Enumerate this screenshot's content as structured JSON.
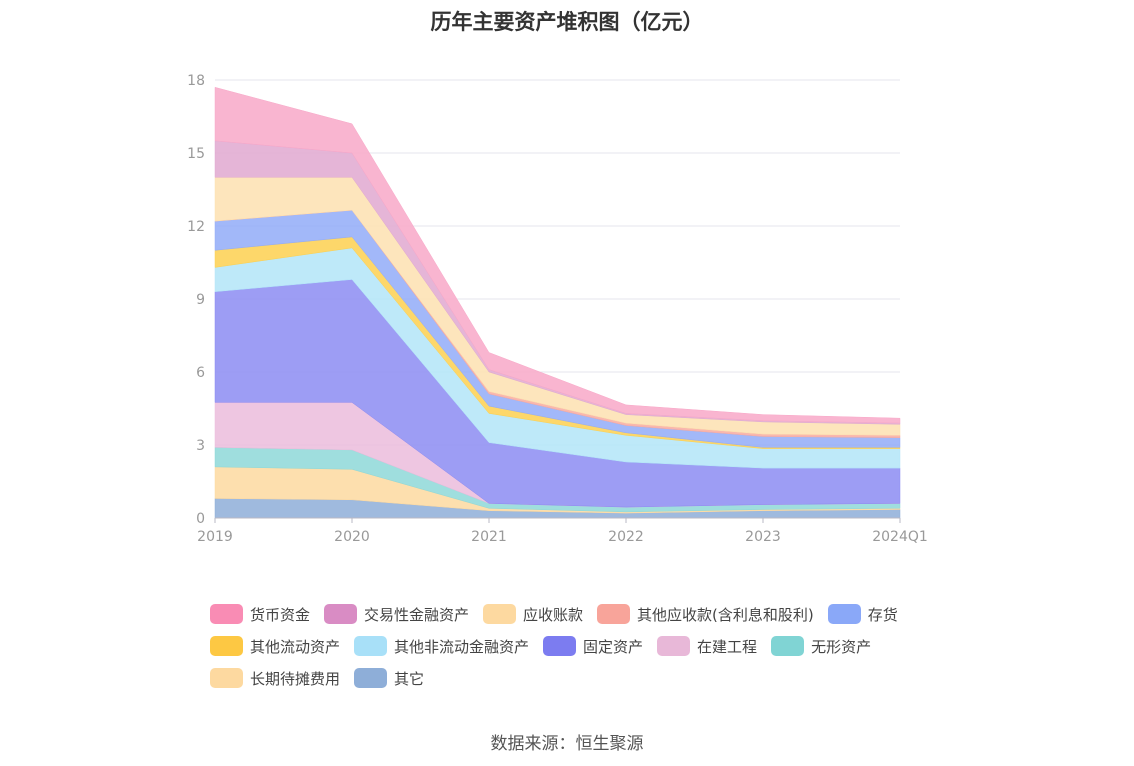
{
  "title": "历年主要资产堆积图（亿元）",
  "source": "数据来源：恒生聚源",
  "chart_data": {
    "type": "area",
    "stacked": true,
    "title": "历年主要资产堆积图（亿元）",
    "categories": [
      "2019",
      "2020",
      "2021",
      "2022",
      "2023",
      "2024Q1"
    ],
    "ylim": [
      0,
      18
    ],
    "yticks": [
      0,
      3,
      6,
      9,
      12,
      15,
      18
    ],
    "grid": true,
    "legend_position": "bottom",
    "series": [
      {
        "name": "其它",
        "color": "#8eaed8",
        "values": [
          0.8,
          0.75,
          0.3,
          0.2,
          0.3,
          0.35
        ]
      },
      {
        "name": "长期待摊费用",
        "color": "#fdd9a0",
        "values": [
          1.3,
          1.25,
          0.1,
          0.05,
          0.05,
          0.05
        ]
      },
      {
        "name": "无形资产",
        "color": "#8ed8d8",
        "values": [
          0.8,
          0.8,
          0.2,
          0.2,
          0.2,
          0.2
        ]
      },
      {
        "name": "在建工程",
        "color": "#ebbcdc",
        "values": [
          1.85,
          1.95,
          0.0,
          0.0,
          0.0,
          0.0
        ]
      },
      {
        "name": "固定资产",
        "color": "#8c8cf2",
        "values": [
          4.55,
          5.05,
          2.5,
          1.85,
          1.5,
          1.45
        ]
      },
      {
        "name": "其他非流动金融资产",
        "color": "#b3e5f8",
        "values": [
          1.0,
          1.3,
          1.2,
          1.1,
          0.8,
          0.8
        ]
      },
      {
        "name": "其他流动资产",
        "color": "#fdd050",
        "values": [
          0.7,
          0.45,
          0.3,
          0.1,
          0.05,
          0.05
        ]
      },
      {
        "name": "存货",
        "color": "#92acf8",
        "values": [
          1.2,
          1.1,
          0.5,
          0.3,
          0.45,
          0.4
        ]
      },
      {
        "name": "其他应收款(含利息和股利)",
        "color": "#f8aaa0",
        "values": [
          0.0,
          0.0,
          0.1,
          0.1,
          0.1,
          0.1
        ]
      },
      {
        "name": "应收账款",
        "color": "#fde0b0",
        "values": [
          1.8,
          1.35,
          0.8,
          0.35,
          0.5,
          0.45
        ]
      },
      {
        "name": "交易性金融资产",
        "color": "#e0a8d0",
        "values": [
          1.5,
          1.0,
          0.1,
          0.05,
          0.05,
          0.05
        ]
      },
      {
        "name": "货币资金",
        "color": "#f8a8c8",
        "values": [
          2.2,
          1.2,
          0.7,
          0.35,
          0.25,
          0.2
        ]
      }
    ]
  },
  "legend": [
    {
      "name": "货币资金",
      "color": "#f98cb4"
    },
    {
      "name": "交易性金融资产",
      "color": "#d98cc4"
    },
    {
      "name": "应收账款",
      "color": "#fdd9a0"
    },
    {
      "name": "其他应收款(含利息和股利)",
      "color": "#f8a49a"
    },
    {
      "name": "存货",
      "color": "#8aa8f8"
    },
    {
      "name": "其他流动资产",
      "color": "#fdc843"
    },
    {
      "name": "其他非流动金融资产",
      "color": "#a8e0f8"
    },
    {
      "name": "固定资产",
      "color": "#7c7cf0"
    },
    {
      "name": "在建工程",
      "color": "#e8b8d8"
    },
    {
      "name": "无形资产",
      "color": "#80d4d4"
    },
    {
      "name": "长期待摊费用",
      "color": "#fdd9a0"
    },
    {
      "name": "其它",
      "color": "#8eaed8"
    }
  ]
}
